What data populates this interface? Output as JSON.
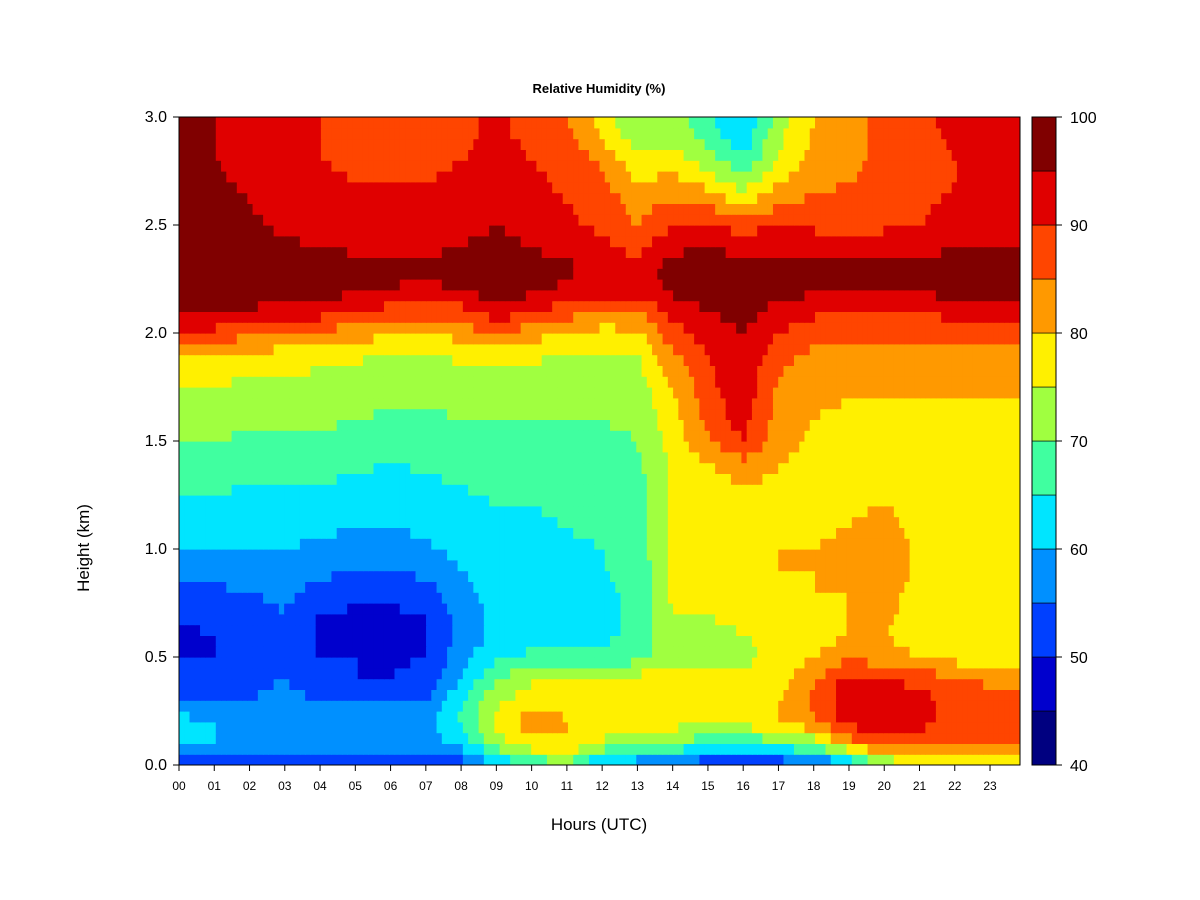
{
  "chart_data": {
    "type": "heatmap",
    "title": "Relative Humidity (%)",
    "xlabel": "Hours (UTC)",
    "ylabel": "Height (km)",
    "x_ticks": [
      "00",
      "01",
      "02",
      "03",
      "04",
      "05",
      "06",
      "07",
      "08",
      "09",
      "10",
      "11",
      "12",
      "13",
      "14",
      "15",
      "16",
      "17",
      "18",
      "19",
      "20",
      "21",
      "22",
      "23"
    ],
    "y_ticks": [
      "0.0",
      "0.5",
      "1.0",
      "1.5",
      "2.0",
      "2.5",
      "3.0"
    ],
    "xlim": [
      0,
      23.85
    ],
    "ylim": [
      0,
      3.0
    ],
    "colorbar": {
      "levels": [
        40,
        45,
        50,
        55,
        60,
        65,
        70,
        75,
        80,
        85,
        90,
        95,
        100
      ],
      "labels": [
        "40",
        "50",
        "60",
        "70",
        "80",
        "90",
        "100"
      ],
      "colors": [
        "#000080",
        "#0000CD",
        "#0040FF",
        "#0090FF",
        "#00E5FF",
        "#40FFA0",
        "#A0FF40",
        "#FFF000",
        "#FF9900",
        "#FF4500",
        "#E00000",
        "#800000"
      ]
    },
    "heights_km": [
      0.0,
      0.1,
      0.2,
      0.3,
      0.4,
      0.5,
      0.6,
      0.7,
      0.8,
      0.9,
      1.0,
      1.1,
      1.2,
      1.3,
      1.4,
      1.5,
      1.6,
      1.7,
      1.8,
      1.9,
      2.0,
      2.1,
      2.2,
      2.3,
      2.4,
      2.5,
      2.6,
      2.7,
      2.8,
      2.9,
      3.0
    ],
    "hours": [
      0,
      1,
      2,
      3,
      4,
      5,
      6,
      7,
      8,
      9,
      10,
      11,
      12,
      13,
      14,
      15,
      16,
      17,
      18,
      19,
      20,
      21,
      22,
      23
    ],
    "values": [
      [
        48,
        50,
        52,
        53,
        52,
        52,
        51,
        50,
        52,
        60,
        66,
        68,
        58,
        56,
        54,
        50,
        48,
        50,
        52,
        58,
        70,
        74,
        76,
        78
      ],
      [
        60,
        60,
        58,
        58,
        57,
        58,
        58,
        57,
        62,
        72,
        78,
        80,
        74,
        72,
        70,
        66,
        66,
        68,
        72,
        82,
        88,
        86,
        84,
        84
      ],
      [
        62,
        60,
        58,
        60,
        60,
        58,
        58,
        58,
        66,
        76,
        84,
        80,
        78,
        78,
        77,
        76,
        77,
        80,
        84,
        92,
        94,
        92,
        88,
        88
      ],
      [
        56,
        55,
        55,
        57,
        55,
        54,
        54,
        55,
        64,
        74,
        78,
        78,
        77,
        78,
        78,
        77,
        77,
        80,
        86,
        94,
        94,
        92,
        88,
        86
      ],
      [
        52,
        52,
        53,
        55,
        51,
        50,
        50,
        52,
        60,
        70,
        74,
        74,
        76,
        77,
        77,
        76,
        76,
        78,
        84,
        92,
        90,
        88,
        86,
        84
      ],
      [
        50,
        50,
        52,
        54,
        50,
        50,
        49,
        50,
        58,
        64,
        66,
        66,
        66,
        68,
        74,
        74,
        74,
        76,
        80,
        84,
        82,
        80,
        78,
        76
      ],
      [
        49,
        50,
        52,
        54,
        49,
        49,
        48,
        50,
        56,
        62,
        63,
        64,
        64,
        66,
        74,
        74,
        75,
        76,
        78,
        80,
        80,
        78,
        77,
        76
      ],
      [
        51,
        51,
        53,
        55,
        50,
        49,
        49,
        50,
        57,
        62,
        63,
        63,
        64,
        66,
        75,
        75,
        76,
        78,
        79,
        80,
        81,
        78,
        77,
        76
      ],
      [
        54,
        54,
        55,
        56,
        53,
        52,
        52,
        53,
        58,
        62,
        63,
        63,
        64,
        66,
        76,
        76,
        77,
        78,
        80,
        80,
        82,
        78,
        77,
        76
      ],
      [
        57,
        57,
        57,
        58,
        56,
        55,
        55,
        56,
        60,
        63,
        63,
        64,
        65,
        66,
        77,
        77,
        78,
        80,
        80,
        81,
        83,
        79,
        78,
        77
      ],
      [
        60,
        60,
        60,
        60,
        59,
        58,
        58,
        59,
        62,
        63,
        64,
        64,
        65,
        67,
        77,
        78,
        78,
        80,
        80,
        82,
        84,
        79,
        78,
        78
      ],
      [
        62,
        62,
        62,
        62,
        61,
        60,
        60,
        61,
        63,
        64,
        64,
        65,
        66,
        67,
        77,
        78,
        78,
        80,
        79,
        80,
        82,
        78,
        78,
        78
      ],
      [
        64,
        64,
        63,
        63,
        63,
        62,
        61,
        62,
        64,
        65,
        65,
        66,
        66,
        68,
        76,
        78,
        78,
        79,
        78,
        79,
        80,
        78,
        78,
        78
      ],
      [
        66,
        66,
        65,
        65,
        65,
        64,
        63,
        64,
        65,
        66,
        66,
        67,
        67,
        68,
        76,
        78,
        80,
        79,
        78,
        78,
        79,
        78,
        78,
        78
      ],
      [
        68,
        68,
        67,
        67,
        67,
        66,
        65,
        66,
        67,
        68,
        67,
        68,
        68,
        69,
        76,
        80,
        84,
        80,
        78,
        78,
        78,
        78,
        78,
        78
      ],
      [
        70,
        70,
        69,
        69,
        69,
        68,
        67,
        68,
        68,
        69,
        68,
        69,
        69,
        70,
        77,
        84,
        90,
        82,
        79,
        78,
        78,
        78,
        78,
        78
      ],
      [
        72,
        72,
        71,
        71,
        71,
        70,
        69,
        69,
        70,
        70,
        70,
        70,
        70,
        71,
        78,
        87,
        92,
        83,
        80,
        79,
        79,
        79,
        79,
        79
      ],
      [
        74,
        74,
        73,
        73,
        72,
        72,
        71,
        71,
        71,
        72,
        71,
        71,
        71,
        72,
        79,
        88,
        93,
        84,
        81,
        80,
        80,
        80,
        80,
        80
      ],
      [
        76,
        76,
        75,
        75,
        74,
        73,
        72,
        72,
        73,
        74,
        73,
        73,
        72,
        73,
        81,
        89,
        94,
        85,
        82,
        81,
        81,
        81,
        81,
        81
      ],
      [
        80,
        80,
        79,
        78,
        77,
        76,
        75,
        75,
        76,
        78,
        76,
        75,
        74,
        75,
        84,
        90,
        94,
        87,
        84,
        83,
        83,
        83,
        83,
        83
      ],
      [
        88,
        88,
        86,
        85,
        84,
        82,
        81,
        80,
        82,
        86,
        82,
        80,
        78,
        79,
        88,
        92,
        95,
        90,
        87,
        86,
        86,
        86,
        87,
        88
      ],
      [
        96,
        96,
        94,
        93,
        92,
        90,
        88,
        87,
        88,
        93,
        90,
        87,
        85,
        85,
        92,
        95,
        97,
        93,
        91,
        90,
        90,
        90,
        92,
        93
      ],
      [
        100,
        100,
        99,
        98,
        97,
        96,
        95,
        94,
        95,
        98,
        96,
        94,
        92,
        92,
        96,
        98,
        98,
        97,
        96,
        96,
        96,
        96,
        97,
        98
      ],
      [
        100,
        100,
        100,
        99,
        98,
        97,
        96,
        96,
        97,
        99,
        97,
        96,
        94,
        93,
        97,
        98,
        98,
        98,
        97,
        97,
        97,
        97,
        98,
        98
      ],
      [
        100,
        99,
        97,
        96,
        95,
        94,
        94,
        94,
        95,
        97,
        95,
        93,
        91,
        88,
        94,
        95,
        93,
        94,
        93,
        92,
        93,
        93,
        95,
        95
      ],
      [
        99,
        98,
        96,
        94,
        93,
        92,
        92,
        92,
        93,
        95,
        93,
        91,
        89,
        85,
        90,
        90,
        88,
        90,
        89,
        88,
        89,
        90,
        92,
        93
      ],
      [
        98,
        97,
        95,
        93,
        92,
        91,
        91,
        91,
        92,
        94,
        92,
        90,
        88,
        83,
        86,
        84,
        80,
        84,
        86,
        86,
        87,
        89,
        91,
        92
      ],
      [
        97,
        96,
        94,
        92,
        91,
        90,
        90,
        90,
        91,
        93,
        91,
        89,
        86,
        80,
        82,
        78,
        72,
        80,
        84,
        85,
        86,
        88,
        90,
        92
      ],
      [
        96,
        95,
        93,
        92,
        90,
        89,
        89,
        89,
        90,
        92,
        90,
        88,
        84,
        76,
        78,
        72,
        66,
        76,
        82,
        84,
        86,
        88,
        90,
        93
      ],
      [
        96,
        95,
        93,
        91,
        90,
        89,
        89,
        88,
        89,
        91,
        89,
        86,
        80,
        72,
        74,
        68,
        62,
        74,
        81,
        84,
        86,
        88,
        91,
        94
      ],
      [
        96,
        95,
        93,
        91,
        90,
        89,
        88,
        88,
        89,
        91,
        88,
        85,
        78,
        70,
        72,
        66,
        60,
        72,
        80,
        84,
        86,
        89,
        92,
        95
      ]
    ]
  }
}
